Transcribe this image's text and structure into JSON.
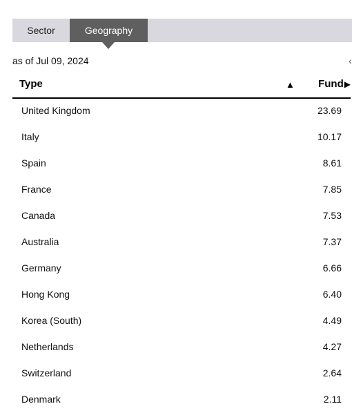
{
  "tabs": [
    {
      "label": "Sector",
      "active": false
    },
    {
      "label": "Geography",
      "active": true
    }
  ],
  "as_of": "as of Jul 09, 2024",
  "table": {
    "columns": {
      "type": "Type",
      "fund": "Fund",
      "sort_icon": "sort-ascending-icon",
      "fund_icon": "play-right-icon"
    },
    "rows": [
      {
        "name": "United Kingdom",
        "value": "23.69"
      },
      {
        "name": "Italy",
        "value": "10.17"
      },
      {
        "name": "Spain",
        "value": "8.61"
      },
      {
        "name": "France",
        "value": "7.85"
      },
      {
        "name": "Canada",
        "value": "7.53"
      },
      {
        "name": "Australia",
        "value": "7.37"
      },
      {
        "name": "Germany",
        "value": "6.66"
      },
      {
        "name": "Hong Kong",
        "value": "6.40"
      },
      {
        "name": "Korea (South)",
        "value": "4.49"
      },
      {
        "name": "Netherlands",
        "value": "4.27"
      },
      {
        "name": "Switzerland",
        "value": "2.64"
      },
      {
        "name": "Denmark",
        "value": "2.11"
      }
    ]
  },
  "colors": {
    "tab_bar": "#d9d8df",
    "active_tab": "#5f5f5f",
    "header_rule": "#000000"
  }
}
